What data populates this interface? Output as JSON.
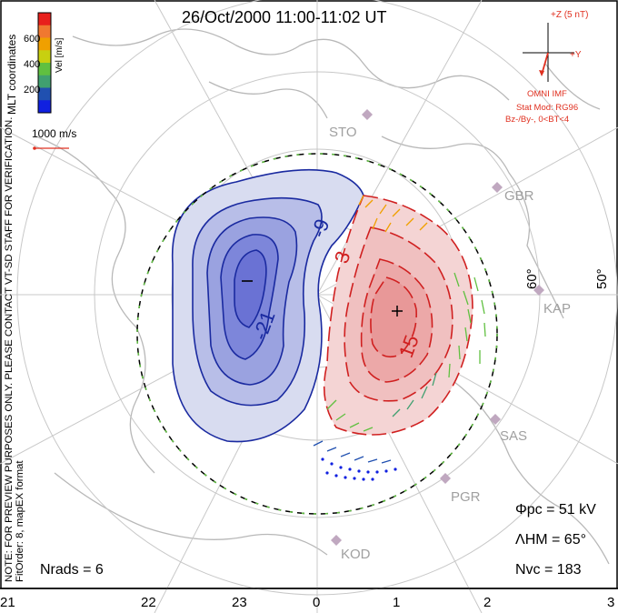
{
  "title": "26/Oct/2000 11:00-11:02 UT",
  "colorbar": {
    "unit_label": "Vel [m/s]",
    "ticks": [
      "600",
      "400",
      "200"
    ],
    "colors": [
      "#e8201c",
      "#f07830",
      "#f0a000",
      "#c8d010",
      "#60c040",
      "#40a070",
      "#2050b0",
      "#1020e0"
    ]
  },
  "left_text": {
    "coords": "MLT coordinates",
    "note": "NOTE: FOR PREVIEW PURPOSES ONLY. PLEASE CONTACT VT-SD STAFF FOR VERIFICATION.",
    "fit": "FitOrder: 8, mapEX format"
  },
  "vector_scale": "1000 m/s",
  "imf": {
    "z_label": "+Z (5 nT)",
    "y_label": "+Y",
    "source": "OMNI IMF",
    "model": "Stat Mod: RG96",
    "model_params": "Bz-/By-, 0<BT<4"
  },
  "stations": [
    "STO",
    "GBR",
    "KAP",
    "SAS",
    "PGR",
    "KOD"
  ],
  "lat_labels": [
    "60°",
    "50°"
  ],
  "contour_labels": [
    "-9",
    "-21",
    "3",
    "15"
  ],
  "mlt_hours": [
    "21",
    "22",
    "23",
    "0",
    "1",
    "2",
    "3"
  ],
  "stats": {
    "phi_pc": "Φpc = 51 kV",
    "lambda_hm": "ΛHM = 65°",
    "n_vc": "Nvc = 183",
    "n_rads": "Nrads = 6"
  },
  "colors": {
    "negative_cell": "#2030b0",
    "positive_cell": "#d02020",
    "boundary": "#60c040"
  }
}
